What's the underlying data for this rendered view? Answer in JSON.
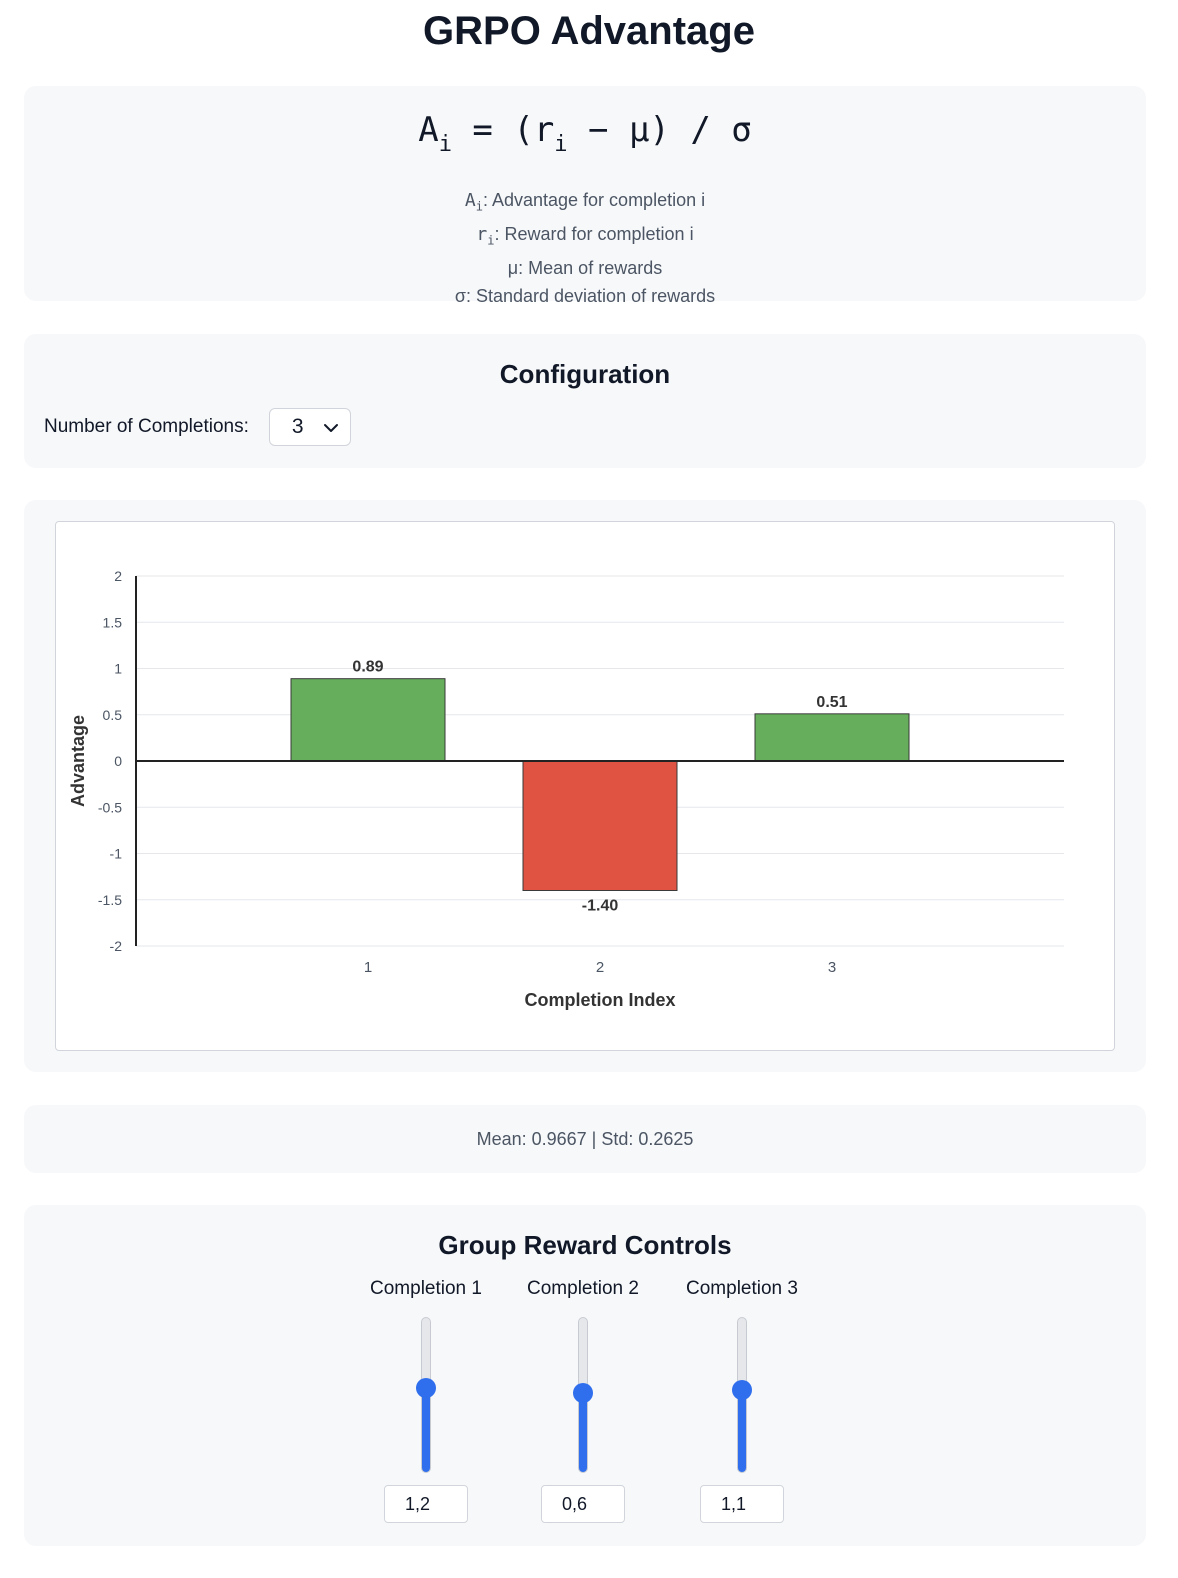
{
  "page": {
    "title": "GRPO Advantage"
  },
  "formula": {
    "lhs_base": "A",
    "lhs_sub": "i",
    "mid": " = (r",
    "mid_sub": "i",
    "rest": " − μ) / σ",
    "legend": [
      {
        "sym": "A",
        "sub": "i",
        "text": ": Advantage for completion i"
      },
      {
        "sym": "r",
        "sub": "i",
        "text": ": Reward for completion i"
      },
      {
        "sym": "μ",
        "sub": "",
        "text": ": Mean of rewards"
      },
      {
        "sym": "σ",
        "sub": "",
        "text": ": Standard deviation of rewards"
      }
    ]
  },
  "config": {
    "title": "Configuration",
    "completions_label": "Number of Completions:",
    "completions_value": "3"
  },
  "chart_data": {
    "type": "bar",
    "categories": [
      "1",
      "2",
      "3"
    ],
    "values": [
      0.89,
      -1.4,
      0.51
    ],
    "data_labels": [
      "0.89",
      "-1.40",
      "0.51"
    ],
    "xlabel": "Completion Index",
    "ylabel": "Advantage",
    "ylim": [
      -2,
      2
    ],
    "yticks": [
      "2",
      "1.5",
      "1",
      "0.5",
      "0",
      "-0.5",
      "-1",
      "-1.5",
      "-2"
    ],
    "ytick_values": [
      2,
      1.5,
      1,
      0.5,
      0,
      -0.5,
      -1,
      -1.5,
      -2
    ],
    "grid": true,
    "colors": {
      "positive": "#66ae5b",
      "negative": "#e05241"
    }
  },
  "stats": {
    "text": "Mean: 0.9667 | Std: 0.2625",
    "mean": 0.9667,
    "std": 0.2625
  },
  "controls": {
    "title": "Group Reward Controls",
    "sliders": [
      {
        "label": "Completion 1",
        "value": "1,2",
        "level": 0.55
      },
      {
        "label": "Completion 2",
        "value": "0,6",
        "level": 0.52
      },
      {
        "label": "Completion 3",
        "value": "1,1",
        "level": 0.54
      }
    ]
  }
}
